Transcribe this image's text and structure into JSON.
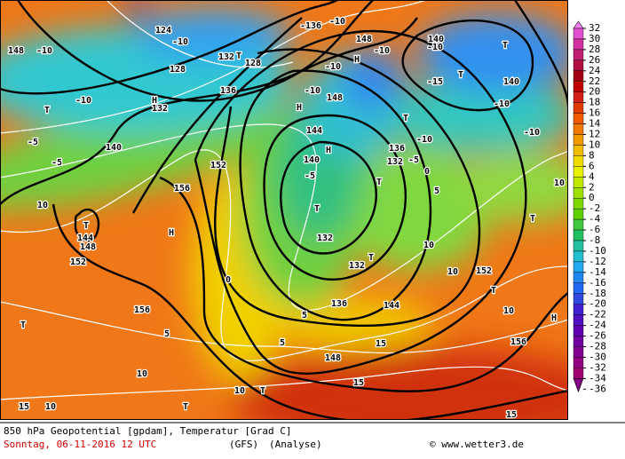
{
  "map": {
    "labels": [
      "-10",
      "148",
      "-10",
      "124",
      "128",
      "132",
      "T",
      "128",
      "136",
      "H",
      "132",
      "-10",
      "T",
      "-5",
      "-5",
      "140",
      "10",
      "T",
      "144",
      "148",
      "152",
      "156",
      "H",
      "152",
      "0",
      "156",
      "5",
      "10",
      "T",
      "15",
      "10",
      "T",
      "10",
      "T",
      "148",
      "15",
      "15",
      "144",
      "136",
      "132",
      "T",
      "132",
      "T",
      "-5",
      "140",
      "H",
      "144",
      "H",
      "148",
      "-10",
      "-10",
      "H",
      "-136",
      "-10",
      "148",
      "-10",
      "T",
      "5",
      "0",
      "-5",
      "136",
      "132",
      "-10",
      "T",
      "140",
      "-10",
      "T",
      "T",
      "-15",
      "140",
      "-10",
      "-10",
      "152",
      "T",
      "10",
      "H",
      "T",
      "156",
      "15",
      "5",
      "5",
      "10",
      "10",
      "10"
    ]
  },
  "legend": {
    "labels": [
      32,
      30,
      28,
      26,
      24,
      22,
      20,
      18,
      16,
      14,
      12,
      10,
      8,
      6,
      4,
      2,
      0,
      -2,
      -4,
      -6,
      -8,
      -10,
      -12,
      -14,
      -16,
      -18,
      -20,
      -22,
      -24,
      -26,
      -28,
      -30,
      -32,
      -34,
      -36
    ],
    "colors": [
      "#f080f0",
      "#e050d0",
      "#d030a0",
      "#c02070",
      "#b01040",
      "#a00010",
      "#c00000",
      "#d02018",
      "#e03c00",
      "#f05a00",
      "#f07a00",
      "#f09a00",
      "#f0bc00",
      "#f0dc00",
      "#e8f000",
      "#c0e800",
      "#a0e000",
      "#80d800",
      "#60d000",
      "#40c840",
      "#20c060",
      "#20c0a0",
      "#20c0d0",
      "#20a8f0",
      "#2088f0",
      "#2068f0",
      "#3048e0",
      "#4020d0",
      "#5010c0",
      "#6000b0",
      "#7000a0",
      "#800090",
      "#900080",
      "#a00070",
      "#800080"
    ]
  },
  "footer": {
    "line1": "850 hPa Geopotential [gpdam], Temperatur [Grad C]",
    "date": "Sonntag, 06-11-2016  12 UTC",
    "model": "(GFS)",
    "run": "(Analyse)",
    "credit": "© www.wetter3.de"
  }
}
